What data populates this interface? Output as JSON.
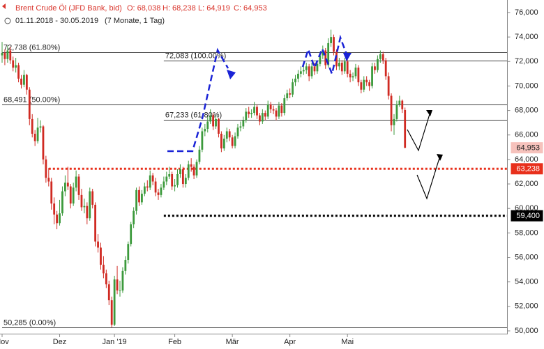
{
  "chart_data": {
    "type": "candlestick",
    "title": "Brent Crude Öl (JFD Bank, bid)",
    "summary": [
      "O: 68,038",
      "H: 68,238",
      "L: 64,919",
      "C: 64,953"
    ],
    "subtitle": "01.11.2018 - 30.05.2019",
    "period": "(7 Monate, 1 Tag)",
    "up_color": "#3c9a3c",
    "down_color": "#d02a22",
    "ylim": [
      49800,
      77000
    ],
    "yticks": [
      {
        "value": 50000,
        "label": "50,000"
      },
      {
        "value": 52000,
        "label": "52,000"
      },
      {
        "value": 54000,
        "label": "54,000"
      },
      {
        "value": 56000,
        "label": "56,000"
      },
      {
        "value": 58000,
        "label": "58,000"
      },
      {
        "value": 60000,
        "label": "60,000"
      },
      {
        "value": 62000,
        "label": "62,000"
      },
      {
        "value": 64000,
        "label": "64,000"
      },
      {
        "value": 66000,
        "label": "66,000"
      },
      {
        "value": 68000,
        "label": "68,000"
      },
      {
        "value": 70000,
        "label": "70,000"
      },
      {
        "value": 72000,
        "label": "72,000"
      },
      {
        "value": 74000,
        "label": "74,000"
      },
      {
        "value": 76000,
        "label": "76,000"
      }
    ],
    "xticks": [
      {
        "value": 0,
        "label": "Nov"
      },
      {
        "value": 21,
        "label": "Dez"
      },
      {
        "value": 41,
        "label": "Jan '19"
      },
      {
        "value": 63,
        "label": "Feb"
      },
      {
        "value": 84,
        "label": "Mär"
      },
      {
        "value": 105,
        "label": "Apr"
      },
      {
        "value": 126,
        "label": "Mai"
      }
    ],
    "levels": [
      {
        "value": 72738,
        "label": "72,738 (61.80%)",
        "from": 0
      },
      {
        "value": 72083,
        "label": "72,083 (100.00%)",
        "from": 59
      },
      {
        "value": 68491,
        "label": "68,491 (50.00%)",
        "from": 0
      },
      {
        "value": 67233,
        "label": "67,233 (61.80%)",
        "from": 59
      },
      {
        "value": 50285,
        "label": "50,285 (0.00%)",
        "from": 0
      }
    ],
    "price_tags": [
      {
        "value": 64953,
        "label": "64,953",
        "color": "#f6c2bc",
        "text_color": "#222",
        "from": null
      },
      {
        "value": 63238,
        "label": "63,238",
        "color": "#e8301c",
        "text_color": "#fff",
        "from": 17
      },
      {
        "value": 59400,
        "label": "59,400",
        "color": "#000000",
        "text_color": "#fff",
        "from": 59
      }
    ],
    "ohlc": [
      [
        72500,
        73600,
        71900,
        72700
      ],
      [
        72700,
        73000,
        71700,
        72200
      ],
      [
        72200,
        73300,
        71900,
        72900
      ],
      [
        72900,
        73200,
        71800,
        72100
      ],
      [
        72100,
        72400,
        71200,
        71500
      ],
      [
        71500,
        72300,
        71100,
        71700
      ],
      [
        71700,
        71900,
        70300,
        70600
      ],
      [
        70600,
        70900,
        69800,
        70100
      ],
      [
        70100,
        71300,
        69900,
        70900
      ],
      [
        70900,
        71000,
        69300,
        69700
      ],
      [
        69700,
        69900,
        66800,
        67300
      ],
      [
        67300,
        67700,
        65800,
        66100
      ],
      [
        66100,
        66400,
        65100,
        65500
      ],
      [
        65500,
        67400,
        65300,
        66600
      ],
      [
        66600,
        67200,
        66200,
        66700
      ],
      [
        66700,
        66800,
        63600,
        64000
      ],
      [
        64000,
        64300,
        62100,
        62500
      ],
      [
        62500,
        63300,
        61800,
        62200
      ],
      [
        62200,
        62500,
        59900,
        60400
      ],
      [
        60400,
        60900,
        58700,
        59500
      ],
      [
        59500,
        59800,
        58300,
        58800
      ],
      [
        58800,
        60700,
        58600,
        59600
      ],
      [
        59600,
        61800,
        59400,
        61400
      ],
      [
        61400,
        62700,
        61000,
        62100
      ],
      [
        62100,
        63400,
        61500,
        61800
      ],
      [
        61800,
        62000,
        60000,
        60400
      ],
      [
        60400,
        62100,
        60200,
        61700
      ],
      [
        61700,
        63100,
        61400,
        62600
      ],
      [
        62600,
        62800,
        60700,
        61100
      ],
      [
        61100,
        61600,
        59800,
        60100
      ],
      [
        60100,
        60800,
        59600,
        60200
      ],
      [
        60200,
        60500,
        58700,
        59200
      ],
      [
        59200,
        61700,
        59000,
        61400
      ],
      [
        61400,
        61600,
        60000,
        60300
      ],
      [
        60300,
        60500,
        56900,
        57300
      ],
      [
        57300,
        57900,
        56400,
        56800
      ],
      [
        56800,
        57200,
        55000,
        55400
      ],
      [
        55400,
        56100,
        54300,
        54700
      ],
      [
        54700,
        55000,
        53500,
        53800
      ],
      [
        53800,
        54100,
        52100,
        52500
      ],
      [
        52500,
        52800,
        50300,
        50500
      ],
      [
        50500,
        54500,
        50400,
        54200
      ],
      [
        54200,
        55300,
        53000,
        53300
      ],
      [
        53300,
        54100,
        52800,
        53300
      ],
      [
        53300,
        55200,
        53100,
        54900
      ],
      [
        54900,
        56100,
        54600,
        55800
      ],
      [
        55800,
        57300,
        55500,
        57100
      ],
      [
        57100,
        58900,
        56900,
        58700
      ],
      [
        58700,
        60100,
        58400,
        59800
      ],
      [
        59800,
        61700,
        59500,
        61500
      ],
      [
        61500,
        61800,
        60200,
        60500
      ],
      [
        60500,
        61500,
        60300,
        61200
      ],
      [
        61200,
        62100,
        61000,
        61800
      ],
      [
        61800,
        62300,
        61400,
        61700
      ],
      [
        61700,
        63100,
        61500,
        62700
      ],
      [
        62700,
        62900,
        61900,
        62200
      ],
      [
        62200,
        62500,
        61000,
        61300
      ],
      [
        61300,
        61600,
        60700,
        61100
      ],
      [
        61100,
        62000,
        60900,
        61700
      ],
      [
        61700,
        62600,
        61500,
        62200
      ],
      [
        62200,
        63000,
        61900,
        62600
      ],
      [
        62600,
        63400,
        62400,
        62800
      ],
      [
        62800,
        63000,
        61500,
        61800
      ],
      [
        61800,
        62400,
        61400,
        61900
      ],
      [
        61900,
        63200,
        61700,
        62800
      ],
      [
        62800,
        63600,
        62500,
        63200
      ],
      [
        63200,
        63400,
        61700,
        62000
      ],
      [
        62000,
        62800,
        61700,
        62500
      ],
      [
        62500,
        63900,
        62300,
        63600
      ],
      [
        63600,
        64100,
        63000,
        63400
      ],
      [
        63400,
        63600,
        62400,
        62700
      ],
      [
        62700,
        64000,
        62500,
        63800
      ],
      [
        63800,
        65100,
        63600,
        64800
      ],
      [
        64800,
        66600,
        64600,
        66300
      ],
      [
        66300,
        66900,
        65900,
        66500
      ],
      [
        66500,
        67500,
        66200,
        67100
      ],
      [
        67100,
        68100,
        66900,
        67600
      ],
      [
        67600,
        67800,
        66400,
        66700
      ],
      [
        66700,
        67600,
        66500,
        67300
      ],
      [
        67300,
        67400,
        65800,
        66100
      ],
      [
        66100,
        66300,
        64600,
        64900
      ],
      [
        64900,
        66000,
        64700,
        65700
      ],
      [
        65700,
        66600,
        65400,
        66300
      ],
      [
        66300,
        66500,
        65500,
        65800
      ],
      [
        65800,
        66000,
        64900,
        65100
      ],
      [
        65100,
        66200,
        64900,
        65900
      ],
      [
        65900,
        66900,
        65700,
        66600
      ],
      [
        66600,
        67100,
        66300,
        66700
      ],
      [
        66700,
        67500,
        66500,
        67200
      ],
      [
        67200,
        68200,
        67000,
        67900
      ],
      [
        67900,
        68300,
        67400,
        67700
      ],
      [
        67700,
        68100,
        67400,
        67800
      ],
      [
        67800,
        68700,
        67600,
        68300
      ],
      [
        68300,
        68500,
        67300,
        67600
      ],
      [
        67600,
        67800,
        66800,
        67100
      ],
      [
        67100,
        68100,
        66900,
        67800
      ],
      [
        67800,
        68000,
        67200,
        67500
      ],
      [
        67500,
        68800,
        67300,
        68500
      ],
      [
        68500,
        68700,
        67800,
        68100
      ],
      [
        68100,
        68400,
        67700,
        68000
      ],
      [
        68000,
        68200,
        67200,
        67500
      ],
      [
        67500,
        68700,
        67300,
        68400
      ],
      [
        68400,
        68600,
        67500,
        67800
      ],
      [
        67800,
        69300,
        67600,
        69000
      ],
      [
        69000,
        69700,
        68800,
        69400
      ],
      [
        69400,
        69800,
        69000,
        69300
      ],
      [
        69300,
        70600,
        69100,
        70300
      ],
      [
        70300,
        70900,
        70000,
        70600
      ],
      [
        70600,
        71300,
        70300,
        71000
      ],
      [
        71000,
        71600,
        70700,
        71200
      ],
      [
        71200,
        71700,
        70900,
        71300
      ],
      [
        71300,
        71900,
        71000,
        71600
      ],
      [
        71600,
        71800,
        70400,
        70800
      ],
      [
        70800,
        71900,
        70600,
        71600
      ],
      [
        71600,
        71900,
        70900,
        71200
      ],
      [
        71200,
        72100,
        71000,
        71800
      ],
      [
        71800,
        72800,
        71600,
        72500
      ],
      [
        72500,
        73300,
        72200,
        72900
      ],
      [
        72900,
        73100,
        71400,
        71700
      ],
      [
        71700,
        73900,
        71500,
        73500
      ],
      [
        73500,
        74600,
        73200,
        74000
      ],
      [
        74000,
        74200,
        72500,
        72800
      ],
      [
        72800,
        73000,
        71300,
        71600
      ],
      [
        71600,
        72300,
        71300,
        71900
      ],
      [
        71900,
        72100,
        70900,
        71200
      ],
      [
        71200,
        72300,
        71000,
        72000
      ],
      [
        72000,
        72200,
        70700,
        71000
      ],
      [
        71000,
        71300,
        70300,
        70700
      ],
      [
        70700,
        71100,
        70400,
        70800
      ],
      [
        70800,
        71800,
        70600,
        71500
      ],
      [
        71500,
        71700,
        70000,
        70300
      ],
      [
        70300,
        70500,
        69400,
        69700
      ],
      [
        69700,
        70800,
        69500,
        70500
      ],
      [
        70500,
        70800,
        70000,
        70300
      ],
      [
        70300,
        70500,
        69600,
        70000
      ],
      [
        70000,
        71900,
        69800,
        71600
      ],
      [
        71600,
        71900,
        71000,
        71300
      ],
      [
        71300,
        72500,
        71100,
        72200
      ],
      [
        72200,
        72900,
        71900,
        72600
      ],
      [
        72600,
        72800,
        71800,
        72100
      ],
      [
        72100,
        72300,
        70500,
        70800
      ],
      [
        70800,
        71100,
        68900,
        69200
      ],
      [
        69200,
        69400,
        66300,
        66800
      ],
      [
        66800,
        67700,
        66000,
        67300
      ],
      [
        67300,
        68800,
        67100,
        68500
      ],
      [
        68500,
        69200,
        68300,
        68800
      ],
      [
        68800,
        68900,
        67800,
        68100
      ],
      [
        68038,
        68238,
        64919,
        64953
      ]
    ]
  }
}
